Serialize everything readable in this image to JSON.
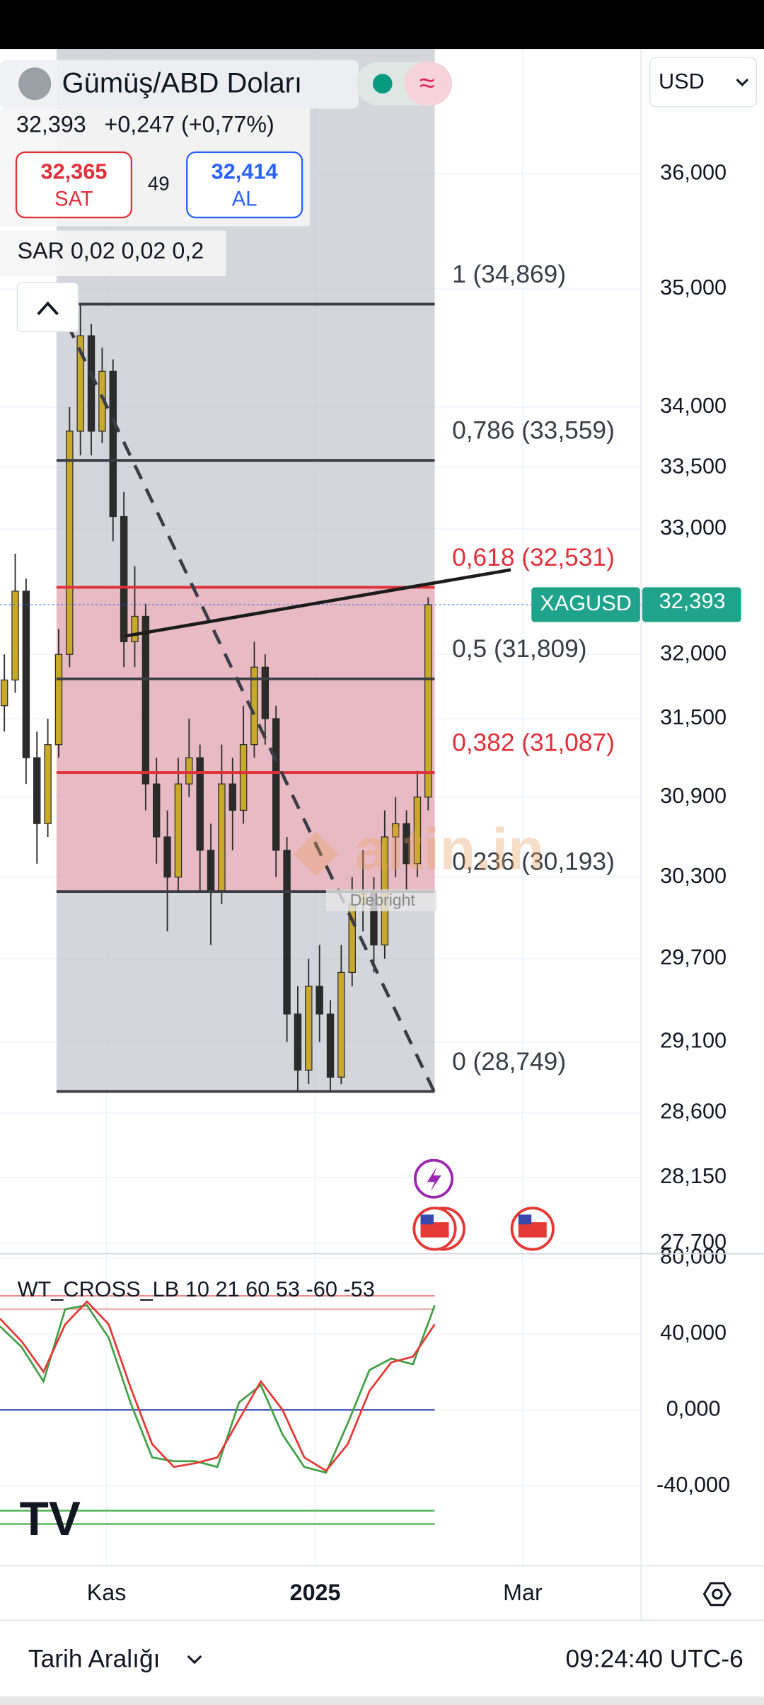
{
  "header": {
    "title": "Gümüş/ABD Doları",
    "price": "32,393",
    "change": "+0,247 (+0,77%)",
    "sell_price": "32,365",
    "sell_label": "SAT",
    "spread": "49",
    "buy_price": "32,414",
    "buy_label": "AL",
    "currency": "USD"
  },
  "chart_data": [
    {
      "type": "candlestick",
      "indicator_label": "SAR 0,02 0,02 0,2",
      "log_scale": true,
      "grid": true,
      "ylim": [
        27650,
        37120
      ],
      "yticks": [
        {
          "value": 36000,
          "label": "36,000"
        },
        {
          "value": 35000,
          "label": "35,000"
        },
        {
          "value": 34000,
          "label": "34,000"
        },
        {
          "value": 33500,
          "label": "33,500"
        },
        {
          "value": 33000,
          "label": "33,000"
        },
        {
          "value": 32000,
          "label": "32,000"
        },
        {
          "value": 31500,
          "label": "31,500"
        },
        {
          "value": 30900,
          "label": "30,900"
        },
        {
          "value": 30300,
          "label": "30,300"
        },
        {
          "value": 29700,
          "label": "29,700"
        },
        {
          "value": 29100,
          "label": "29,100"
        },
        {
          "value": 28600,
          "label": "28,600"
        },
        {
          "value": 28150,
          "label": "28,150"
        },
        {
          "value": 27700,
          "label": "27,700"
        }
      ],
      "x_labels": [
        "Kas",
        "2025",
        "Mar"
      ],
      "up_color": "#c9a92a",
      "down_color": "#2b2b2b",
      "open": [
        31600,
        31800,
        32500,
        31200,
        30700,
        31300,
        32000,
        33800,
        34600,
        33800,
        34300,
        33100,
        32100,
        32300,
        31000,
        30600,
        30300,
        31000,
        31200,
        30500,
        30200,
        31000,
        30800,
        31300,
        31900,
        31500,
        30500,
        29300,
        28900,
        29500,
        29300,
        28850,
        29600,
        30100,
        30200,
        29800,
        30600,
        30700,
        30400,
        30900
      ],
      "high": [
        32000,
        32800,
        32600,
        31400,
        31500,
        32200,
        34000,
        34869,
        34700,
        34500,
        34400,
        33300,
        32700,
        32400,
        31200,
        30800,
        31200,
        31500,
        31300,
        30700,
        31300,
        31200,
        31600,
        32100,
        32000,
        31600,
        30600,
        29500,
        29700,
        29800,
        29400,
        29800,
        30300,
        30500,
        30300,
        30800,
        30900,
        30800,
        31100,
        32450
      ],
      "low": [
        31400,
        31700,
        31000,
        30400,
        30600,
        31200,
        31900,
        33600,
        33600,
        33700,
        32900,
        31900,
        31900,
        30800,
        30400,
        29900,
        30200,
        30900,
        30200,
        29800,
        30100,
        30500,
        30700,
        31200,
        31300,
        30300,
        29100,
        28750,
        28800,
        29100,
        28749,
        28800,
        29500,
        29900,
        29600,
        29700,
        30300,
        30200,
        30300,
        30800
      ],
      "close": [
        31800,
        32500,
        31200,
        30700,
        31300,
        32000,
        33800,
        34600,
        33800,
        34300,
        33100,
        32100,
        32300,
        31000,
        30600,
        30300,
        31000,
        31200,
        30500,
        30200,
        31000,
        30800,
        31300,
        31900,
        31500,
        30500,
        29300,
        28900,
        29500,
        29300,
        28850,
        29600,
        30100,
        30200,
        29800,
        30600,
        30700,
        30400,
        30900,
        32393
      ],
      "fib_levels": [
        {
          "value": 34869,
          "label": "1 (34,869)",
          "color": "#3a3d45"
        },
        {
          "value": 33559,
          "label": "0,786 (33,559)",
          "color": "#3a3d45"
        },
        {
          "value": 32531,
          "label": "0,618 (32,531)",
          "color": "#e0303a"
        },
        {
          "value": 31809,
          "label": "0,5 (31,809)",
          "color": "#3a3d45"
        },
        {
          "value": 31087,
          "label": "0,382 (31,087)",
          "color": "#e0303a"
        },
        {
          "value": 30193,
          "label": "0,236 (30,193)",
          "color": "#3a3d45"
        },
        {
          "value": 28749,
          "label": "0 (28,749)",
          "color": "#3a3d45"
        }
      ],
      "last_price": {
        "symbol": "XAGUSD",
        "value": 32393,
        "label": "32,393",
        "color": "#1fa38a"
      }
    },
    {
      "type": "line",
      "title": "WT_CROSS_LB 10 21 60 53 -60 -53",
      "ylim": [
        -82,
        81
      ],
      "yticks": [
        {
          "value": 80,
          "label": "80,000"
        },
        {
          "value": 40,
          "label": "40,000"
        },
        {
          "value": 0,
          "label": "0,000"
        },
        {
          "value": -40,
          "label": "-40,000"
        }
      ],
      "levels": [
        {
          "value": 60,
          "color": "#ef8a8a"
        },
        {
          "value": 53,
          "color": "#f3b2b2"
        },
        {
          "value": -53,
          "color": "#4caf50"
        },
        {
          "value": -60,
          "color": "#4caf50"
        }
      ],
      "series": [
        {
          "color": "#43a047",
          "values": [
            44,
            33,
            15,
            53,
            55,
            38,
            4,
            -25,
            -27,
            -27,
            -30,
            4,
            13,
            -13,
            -30,
            -33,
            -7,
            21,
            27,
            24,
            55
          ]
        },
        {
          "color": "#e53935",
          "values": [
            48,
            36,
            20,
            45,
            57,
            45,
            12,
            -18,
            -30,
            -28,
            -25,
            -5,
            15,
            0,
            -25,
            -32,
            -18,
            10,
            25,
            28,
            45
          ]
        }
      ]
    }
  ],
  "footer": {
    "range_label": "Tarih Aralığı",
    "time": "09:24:40 UTC-6"
  }
}
